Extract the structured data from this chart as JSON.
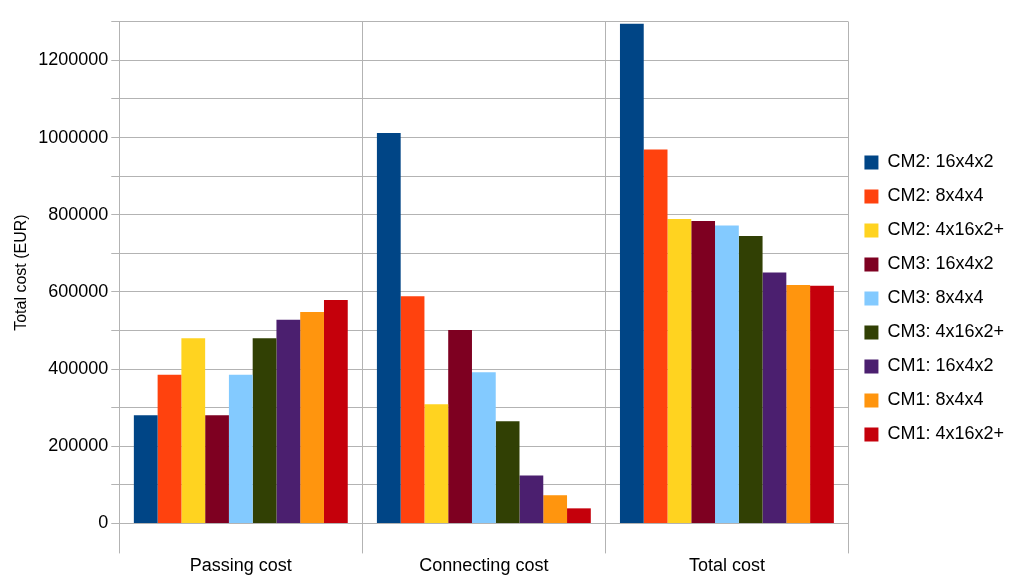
{
  "chart_data": {
    "type": "bar",
    "ylabel": "Total cost (EUR)",
    "categories": [
      "Passing cost",
      "Connecting cost",
      "Total cost"
    ],
    "series": [
      {
        "name": "CM2: 16x4x2",
        "color": "#004586",
        "values": [
          280000,
          1012000,
          1295000
        ]
      },
      {
        "name": "CM2: 8x4x4",
        "color": "#ff420e",
        "values": [
          385000,
          589000,
          969000
        ]
      },
      {
        "name": "CM2: 4x16x2+",
        "color": "#ffd320",
        "values": [
          480000,
          309000,
          789000
        ]
      },
      {
        "name": "CM3: 16x4x2",
        "color": "#7e0021",
        "values": [
          280000,
          501000,
          784000
        ]
      },
      {
        "name": "CM3: 8x4x4",
        "color": "#83caff",
        "values": [
          385000,
          392000,
          772000
        ]
      },
      {
        "name": "CM3: 4x16x2+",
        "color": "#314004",
        "values": [
          480000,
          265000,
          745000
        ]
      },
      {
        "name": "CM1: 16x4x2",
        "color": "#4b1f6f",
        "values": [
          528000,
          124000,
          650000
        ]
      },
      {
        "name": "CM1: 8x4x4",
        "color": "#ff950e",
        "values": [
          548000,
          73000,
          618000
        ]
      },
      {
        "name": "CM1: 4x16x2+",
        "color": "#c5000b",
        "values": [
          579000,
          39000,
          616000
        ]
      }
    ],
    "ylim": [
      0,
      1300000
    ],
    "yticks": [
      0,
      {
        "value": 100000,
        "label": null
      },
      200000,
      {
        "value": 300000,
        "label": null
      },
      400000,
      {
        "value": 500000,
        "label": null
      },
      600000,
      {
        "value": 700000,
        "label": null
      },
      800000,
      {
        "value": 900000,
        "label": null
      },
      1000000,
      {
        "value": 1100000,
        "label": null
      },
      1200000,
      {
        "value": 1300000,
        "label": null
      }
    ],
    "grid": true,
    "legend": "right"
  }
}
